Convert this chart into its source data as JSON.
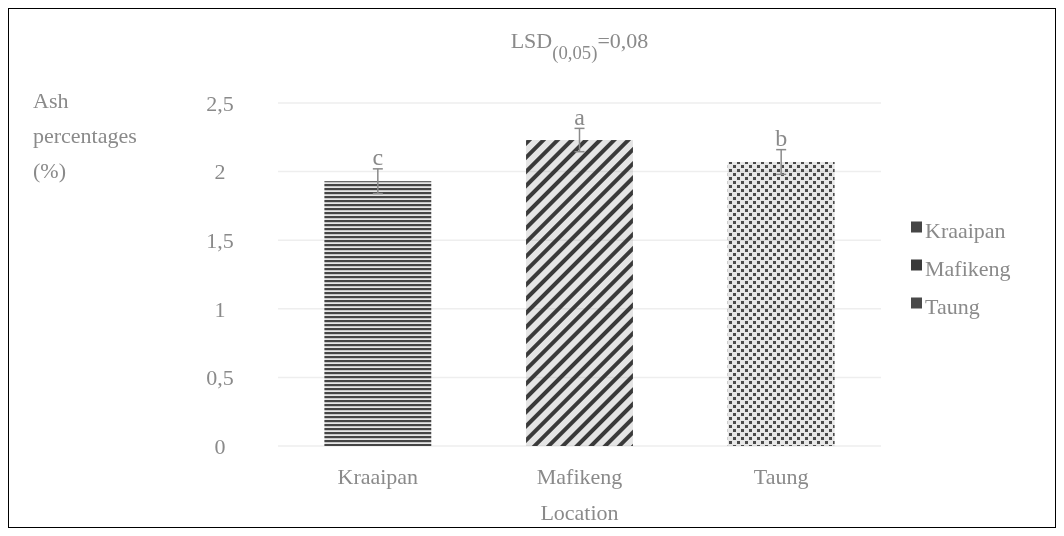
{
  "chart_data": {
    "type": "bar",
    "title": "LSD$_{(0,05)}$=0,08",
    "xlabel": "Location",
    "ylabel": "Ash percentages (%)",
    "categories": [
      "Kraaipan",
      "Mafikeng",
      "Taung"
    ],
    "series": [
      {
        "name": "Kraaipan",
        "color": "#454545",
        "values": [
          1.93,
          null,
          null
        ],
        "errors": [
          0.09,
          null,
          null
        ]
      },
      {
        "name": "Mafikeng",
        "color": "#3a3a3a",
        "values": [
          null,
          2.23,
          null
        ],
        "errors": [
          null,
          0.085,
          null
        ]
      },
      {
        "name": "Taung",
        "color": "#4a4a4a",
        "values": [
          null,
          null,
          2.07
        ],
        "errors": [
          null,
          null,
          0.09
        ]
      }
    ],
    "ylim": [
      0,
      2.5
    ],
    "yticks": [
      0,
      {
        "value": 0.5,
        "label": "0,5"
      },
      1,
      {
        "value": 1.5,
        "label": "1,5"
      },
      2,
      {
        "value": 2.5,
        "label": "2,5"
      }
    ],
    "grid": "y",
    "legend": "right",
    "annotations": [
      {
        "text": "c",
        "x": "Kraaipan",
        "y": 2.02
      },
      {
        "text": "a",
        "x": "Mafikeng",
        "y": 2.31
      },
      {
        "text": "b",
        "x": "Taung",
        "y": 2.16
      }
    ]
  }
}
